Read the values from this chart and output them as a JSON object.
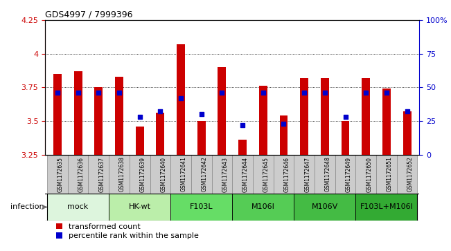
{
  "title": "GDS4997 / 7999396",
  "samples": [
    "GSM1172635",
    "GSM1172636",
    "GSM1172637",
    "GSM1172638",
    "GSM1172639",
    "GSM1172640",
    "GSM1172641",
    "GSM1172642",
    "GSM1172643",
    "GSM1172644",
    "GSM1172645",
    "GSM1172646",
    "GSM1172647",
    "GSM1172648",
    "GSM1172649",
    "GSM1172650",
    "GSM1172651",
    "GSM1172652"
  ],
  "bar_values": [
    3.85,
    3.87,
    3.75,
    3.83,
    3.46,
    3.56,
    4.07,
    3.5,
    3.9,
    3.36,
    3.76,
    3.54,
    3.82,
    3.82,
    3.5,
    3.82,
    3.74,
    3.57
  ],
  "percentile_values": [
    46,
    46,
    46,
    46,
    28,
    32,
    42,
    30,
    46,
    22,
    46,
    23,
    46,
    46,
    28,
    46,
    46,
    32
  ],
  "ylim_left": [
    3.25,
    4.25
  ],
  "ylim_right": [
    0,
    100
  ],
  "yticks_left": [
    3.25,
    3.5,
    3.75,
    4.0,
    4.25
  ],
  "yticks_right": [
    0,
    25,
    50,
    75,
    100
  ],
  "bar_color": "#cc0000",
  "blue_color": "#0000cc",
  "infection_groups": [
    {
      "label": "mock",
      "start": 0,
      "end": 2,
      "color": "#ddf5dd"
    },
    {
      "label": "HK-wt",
      "start": 3,
      "end": 5,
      "color": "#bbeeaa"
    },
    {
      "label": "F103L",
      "start": 6,
      "end": 8,
      "color": "#66dd66"
    },
    {
      "label": "M106I",
      "start": 9,
      "end": 11,
      "color": "#55cc55"
    },
    {
      "label": "M106V",
      "start": 12,
      "end": 14,
      "color": "#44bb44"
    },
    {
      "label": "F103L+M106I",
      "start": 15,
      "end": 17,
      "color": "#33aa33"
    }
  ],
  "bar_width": 0.4,
  "background_color": "#ffffff",
  "sample_cell_color": "#cccccc",
  "sample_cell_edge": "#888888"
}
